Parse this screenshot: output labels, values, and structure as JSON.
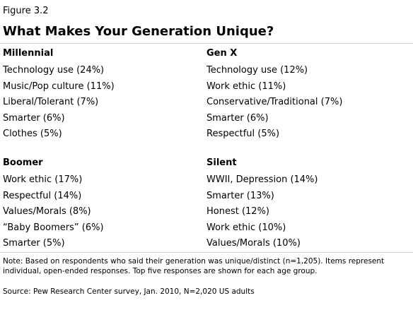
{
  "figure_label": "Figure 3.2",
  "title": "What Makes Your Generation Unique?",
  "groups": [
    {
      "name": "Millennial",
      "items": [
        "Technology use (24%)",
        "Music/Pop culture (11%)",
        "Liberal/Tolerant (7%)",
        "Smarter (6%)",
        "Clothes (5%)"
      ]
    },
    {
      "name": "Gen X",
      "items": [
        "Technology use (12%)",
        "Work ethic (11%)",
        "Conservative/Traditional (7%)",
        "Smarter (6%)",
        "Respectful (5%)"
      ]
    },
    {
      "name": "Boomer",
      "items": [
        "Work ethic (17%)",
        "Respectful (14%)",
        "Values/Morals (8%)",
        "“Baby Boomers” (6%)",
        "Smarter (5%)"
      ]
    },
    {
      "name": "Silent",
      "items": [
        "WWII, Depression (14%)",
        "Smarter (13%)",
        "Honest (12%)",
        "Work ethic (10%)",
        "Values/Morals (10%)"
      ]
    }
  ],
  "note": "Note: Based on respondents who said their generation was unique/distinct (n=1,205). Items represent individual, open-ended responses. Top five responses are shown for each age group.",
  "source": "Source: Pew Research Center survey, Jan. 2010, N=2,020 US adults"
}
